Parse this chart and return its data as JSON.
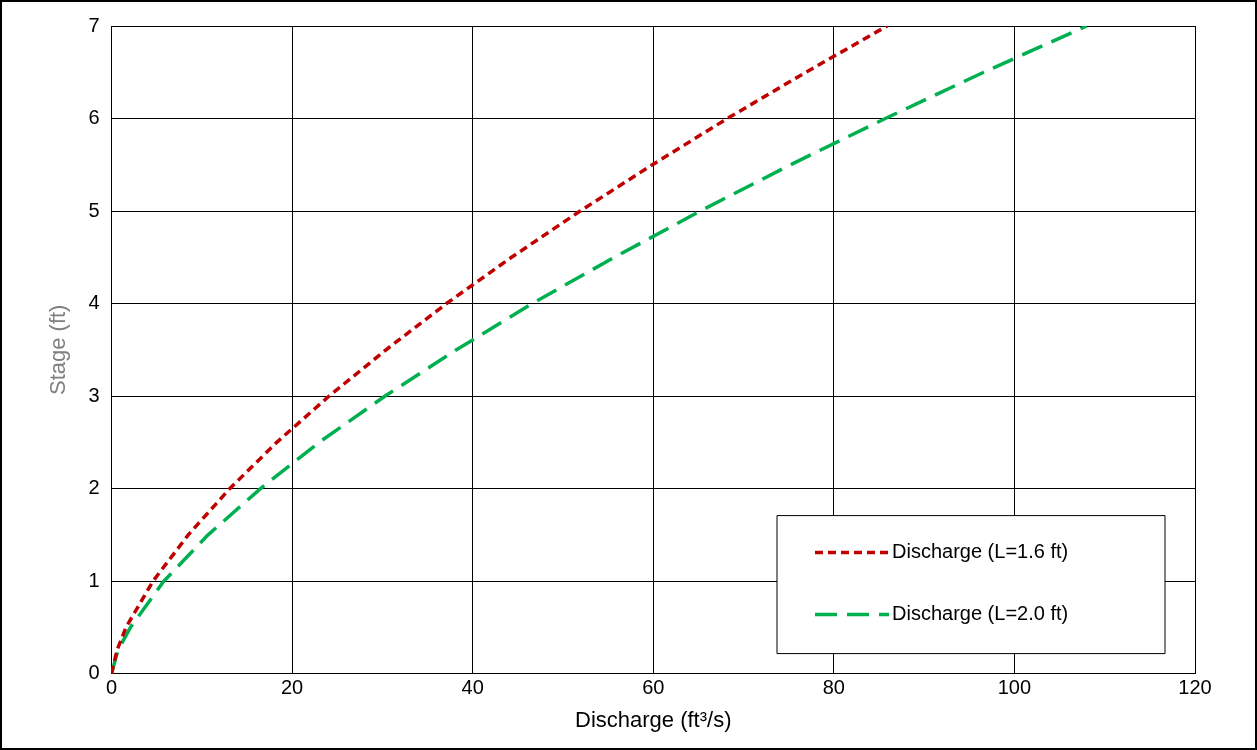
{
  "chart_data": {
    "type": "line",
    "xlabel": "Discharge (ft³/s)",
    "ylabel": "Stage (ft)",
    "xlim": [
      0,
      120
    ],
    "xticks": [
      0,
      20,
      40,
      60,
      80,
      100,
      120
    ],
    "ylim": [
      0,
      7
    ],
    "yticks": [
      0,
      1,
      2,
      3,
      4,
      5,
      6,
      7
    ],
    "grid": true,
    "legend": "bottom right",
    "marker": "none",
    "series": [
      {
        "name": "Discharge (L=1.6 ft)",
        "color": "#c00000",
        "line_style": "dashed",
        "x": [
          0,
          0.6,
          1.6,
          4.6,
          8.5,
          13.1,
          18.3,
          24.1,
          30.4,
          37.1,
          44.3,
          51.9,
          59.9,
          68.2,
          76.9,
          85.9
        ],
        "values": [
          0,
          0.25,
          0.5,
          1,
          1.5,
          2,
          2.5,
          3,
          3.5,
          4,
          4.5,
          5,
          5.5,
          6,
          6.5,
          7
        ]
      },
      {
        "name": "Discharge (L=2.0 ft)",
        "color": "#00b050",
        "line_style": "dashed",
        "x": [
          0,
          0.7,
          2.1,
          5.8,
          10.7,
          16.5,
          23,
          30.3,
          38.2,
          46.6,
          55.7,
          65.2,
          75.2,
          85.7,
          96.6,
          108
        ],
        "values": [
          0,
          0.25,
          0.5,
          1,
          1.5,
          2,
          2.5,
          3,
          3.5,
          4,
          4.5,
          5,
          5.5,
          6,
          6.5,
          7
        ]
      }
    ]
  }
}
